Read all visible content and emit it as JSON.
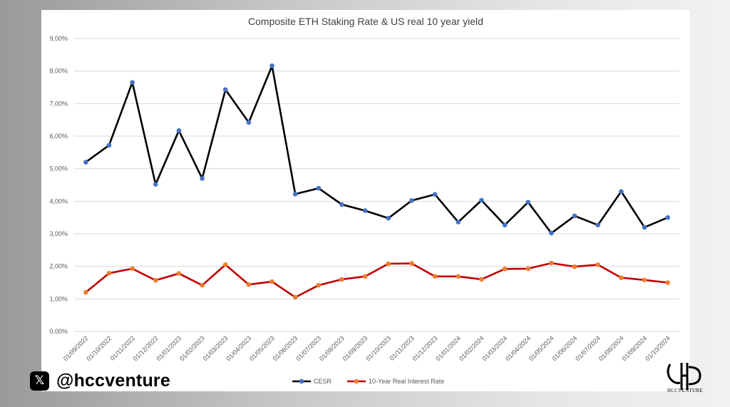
{
  "chart_data": {
    "type": "line",
    "title": "Composite ETH Staking Rate & US real 10 year yield",
    "categories": [
      "01/09/2022",
      "01/10/2022",
      "01/11/2022",
      "01/12/2022",
      "01/01/2023",
      "01/02/2023",
      "01/03/2023",
      "01/04/2023",
      "01/05/2023",
      "01/06/2023",
      "01/07/2023",
      "01/08/2023",
      "01/09/2023",
      "01/10/2023",
      "01/11/2023",
      "01/12/2023",
      "01/01/2024",
      "01/02/2024",
      "01/03/2024",
      "01/04/2024",
      "01/05/2024",
      "01/06/2024",
      "01/07/2024",
      "01/08/2024",
      "01/09/2024",
      "01/10/2024"
    ],
    "series": [
      {
        "name": "CESR",
        "line_color": "#000000",
        "marker_color": "#4472c4",
        "values": [
          5.2,
          5.72,
          7.65,
          4.52,
          6.17,
          4.7,
          7.43,
          6.42,
          8.16,
          4.22,
          4.4,
          3.9,
          3.71,
          3.48,
          4.02,
          4.21,
          3.36,
          4.03,
          3.27,
          3.97,
          3.02,
          3.55,
          3.27,
          4.3,
          3.2,
          3.5
        ]
      },
      {
        "name": "10-Year Real Interest Rate",
        "line_color": "#c00000",
        "marker_color": "#ed7d31",
        "values": [
          1.2,
          1.79,
          1.93,
          1.57,
          1.78,
          1.42,
          2.05,
          1.44,
          1.53,
          1.05,
          1.42,
          1.6,
          1.69,
          2.08,
          2.09,
          1.69,
          1.69,
          1.6,
          1.92,
          1.93,
          2.1,
          1.99,
          2.05,
          1.65,
          1.58,
          1.5
        ]
      }
    ],
    "y_ticks": [
      "0,00%",
      "1,00%",
      "2,00%",
      "3,00%",
      "4,00%",
      "5,00%",
      "6,00%",
      "7,00%",
      "8,00%",
      "9,00%"
    ],
    "ylim": [
      0,
      9
    ],
    "grid": true,
    "legend_position": "bottom"
  },
  "brand": {
    "social_icon": "x-logo-icon",
    "social_icon_glyph": "𝕏",
    "handle": "@hccventure",
    "corner_logo_icon": "hcc-monogram-icon",
    "corner_logo_text": "HCCVENTURE"
  }
}
